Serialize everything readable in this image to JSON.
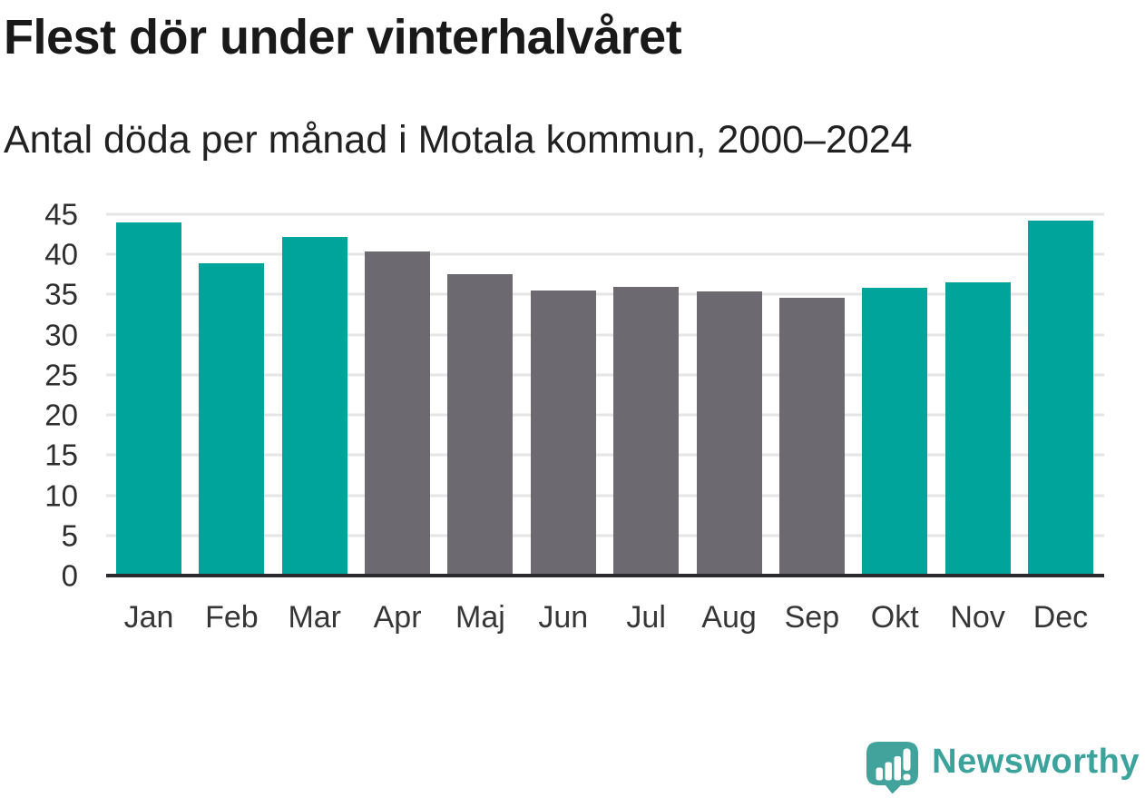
{
  "header": {
    "title": "Flest dör under vinterhalvåret",
    "subtitle": "Antal döda per månad i Motala kommun, 2000–2024"
  },
  "chart_data": {
    "type": "bar",
    "title": "Flest dör under vinterhalvåret",
    "subtitle": "Antal döda per månad i Motala kommun, 2000–2024",
    "categories": [
      "Jan",
      "Feb",
      "Mar",
      "Apr",
      "Maj",
      "Jun",
      "Jul",
      "Aug",
      "Sep",
      "Okt",
      "Nov",
      "Dec"
    ],
    "values": [
      44,
      38.9,
      42.2,
      40.4,
      37.5,
      35.5,
      36,
      35.4,
      34.6,
      35.8,
      36.5,
      44.2
    ],
    "bar_seasons": [
      "winter",
      "winter",
      "winter",
      "summer",
      "summer",
      "summer",
      "summer",
      "summer",
      "summer",
      "winter",
      "winter",
      "winter"
    ],
    "colors": {
      "winter": "#00a49b",
      "summer": "#6c6970"
    },
    "xlabel": "",
    "ylabel": "",
    "ylim": [
      0,
      45
    ],
    "yticks": [
      0,
      5,
      10,
      15,
      20,
      25,
      30,
      35,
      40,
      45
    ],
    "grid": "horizontal",
    "grid_color": "#e5e5e5",
    "axis_color": "#2b2b2e",
    "legend": "none"
  },
  "footer": {
    "brand": "Newsworthy",
    "brand_color": "#3ba39b",
    "logo_icon": "newsworthy-speech-bubble-bar-chart-icon"
  }
}
